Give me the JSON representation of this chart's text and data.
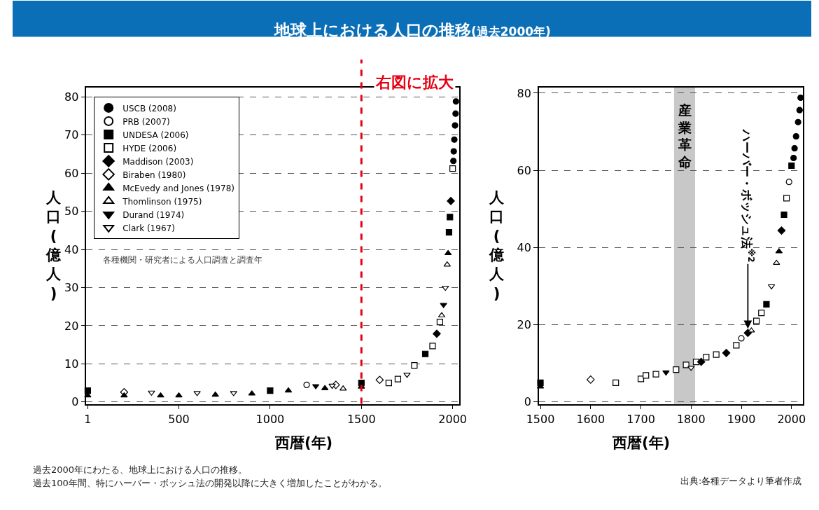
{
  "chart_data": [
    {
      "type": "scatter",
      "title": "地球上における人口の推移",
      "subtitle": "(過去2000年)",
      "xlabel": "西暦(年)",
      "ylabel": "人口(億人)",
      "xlim": [
        -7,
        2035
      ],
      "ylim": [
        -0.5,
        82.5
      ],
      "xticks": [
        1,
        500,
        1000,
        1500,
        2000
      ],
      "yticks": [
        0,
        10,
        20,
        30,
        40,
        50,
        60,
        70,
        80
      ],
      "grid": "y",
      "legend": "top left",
      "ref_lines": [
        {
          "axis": "x",
          "value": 1500,
          "label": "右図に拡大",
          "color": "#e60012",
          "line_style": "dashed"
        }
      ],
      "annotations": [
        "各種機関・研究者による人口調査と調査年",
        "過去2000年にわたる、地球上における人口の推移。",
        "過去100年間、特にハーバー・ボッシュ法の開発以降に大きく増加したことがわかる。"
      ],
      "series": [
        {
          "name": "USCB (2008)",
          "marker": "circle",
          "color": "#000000",
          "x": [
            2004,
            2006,
            2009,
            2013,
            2016,
            2018
          ],
          "values": [
            63.2,
            65.7,
            68.8,
            72.5,
            75.6,
            78.8
          ]
        },
        {
          "name": "PRB (2007)",
          "marker": "circle",
          "color": "#ffffff",
          "x": [
            1200
          ],
          "values": [
            4.5
          ]
        },
        {
          "name": "UNDESA (2006)",
          "marker": "square",
          "color": "#000000",
          "x": [
            1,
            1000,
            1500,
            1850,
            1980,
            1985
          ],
          "values": [
            3.0,
            3.0,
            5.0,
            12.6,
            44.5,
            48.5
          ]
        },
        {
          "name": "HYDE (2006)",
          "marker": "square",
          "color": "#ffffff",
          "x": [
            1650,
            1700,
            1790,
            1890,
            1930,
            2000
          ],
          "values": [
            5.0,
            6.0,
            9.6,
            14.7,
            21.0,
            61.2
          ]
        },
        {
          "name": "Maddison (2003)",
          "marker": "diamond",
          "color": "#000000",
          "x": [
            1913,
            1990
          ],
          "values": [
            17.9,
            52.7
          ]
        },
        {
          "name": "Biraben (1980)",
          "marker": "diamond",
          "color": "#ffffff",
          "x": [
            200,
            1360,
            1600
          ],
          "values": [
            2.6,
            4.5,
            5.8
          ]
        },
        {
          "name": "McEvedy and Jones (1978)",
          "marker": "triangle",
          "color": "#000000",
          "x": [
            1,
            200,
            400,
            500,
            700,
            900,
            1100,
            1300,
            1500,
            1975
          ],
          "values": [
            1.7,
            1.7,
            1.7,
            1.7,
            1.9,
            2.2,
            3.0,
            3.6,
            4.0,
            39.0
          ]
        },
        {
          "name": "Thomlinson (1975)",
          "marker": "triangle",
          "color": "#ffffff",
          "x": [
            1400,
            1940,
            1970
          ],
          "values": [
            3.5,
            22.7,
            36.0
          ]
        },
        {
          "name": "Durand (1974)",
          "marker": "triangle-down",
          "color": "#000000",
          "x": [
            1250,
            1950
          ],
          "values": [
            4.2,
            25.5
          ]
        },
        {
          "name": "Clark (1967)",
          "marker": "triangle-down",
          "color": "#ffffff",
          "x": [
            350,
            600,
            800,
            1340,
            1750,
            1960
          ],
          "values": [
            2.5,
            2.4,
            2.4,
            4.3,
            7.2,
            30.0
          ]
        }
      ]
    },
    {
      "type": "scatter",
      "xlabel": "西暦(年)",
      "ylabel": "人口(億人)",
      "xlim": [
        1497,
        2023
      ],
      "ylim": [
        -0.5,
        81.5
      ],
      "xticks": [
        1500,
        1600,
        1700,
        1800,
        1900,
        2000
      ],
      "yticks": [
        0,
        20,
        40,
        60,
        80
      ],
      "grid": "y",
      "bands": [
        {
          "axis": "x",
          "from": 1766,
          "to": 1808,
          "label": "産業革命",
          "color": "#c8c8c8"
        }
      ],
      "annotations": [
        "出典:各種データより筆者作成",
        {
          "text": "ハーバー・ボッシュ法$^{※2}$",
          "x": 1913,
          "y": 19
        }
      ],
      "series": [
        {
          "marker": "circle",
          "color": "#000000",
          "x": [
            2004,
            2006,
            2009,
            2013,
            2016,
            2018
          ],
          "values": [
            63.2,
            65.7,
            68.8,
            72.5,
            75.6,
            78.8
          ]
        },
        {
          "marker": "circle",
          "color": "#ffffff",
          "x": [
            1900,
            1995
          ],
          "values": [
            16.5,
            57.0
          ]
        },
        {
          "marker": "square",
          "color": "#000000",
          "x": [
            1500,
            1950,
            1985,
            2000
          ],
          "values": [
            5.0,
            25.3,
            48.5,
            61.2
          ]
        },
        {
          "marker": "square",
          "color": "#ffffff",
          "x": [
            1650,
            1700,
            1710,
            1730,
            1770,
            1790,
            1810,
            1830,
            1850,
            1890,
            1930,
            1940,
            1990
          ],
          "values": [
            5.0,
            6.0,
            6.9,
            7.2,
            8.4,
            9.6,
            10.4,
            11.6,
            12.3,
            14.7,
            21.0,
            23.1,
            52.8
          ]
        },
        {
          "marker": "diamond",
          "color": "#000000",
          "x": [
            1820,
            1870,
            1913,
            1980
          ],
          "values": [
            10.4,
            12.7,
            17.9,
            44.4
          ]
        },
        {
          "marker": "diamond",
          "color": "#ffffff",
          "x": [
            1600
          ],
          "values": [
            5.8
          ]
        },
        {
          "marker": "triangle",
          "color": "#000000",
          "x": [
            1500,
            1975
          ],
          "values": [
            4.0,
            39.0
          ]
        },
        {
          "marker": "triangle",
          "color": "#ffffff",
          "x": [
            1920,
            1970
          ],
          "values": [
            18.5,
            36.0
          ]
        },
        {
          "marker": "triangle-down",
          "color": "#000000",
          "x": [
            1750
          ],
          "values": [
            7.7
          ]
        },
        {
          "marker": "triangle-down",
          "color": "#ffffff",
          "x": [
            1800,
            1960
          ],
          "values": [
            8.9,
            30.0
          ]
        }
      ]
    }
  ]
}
